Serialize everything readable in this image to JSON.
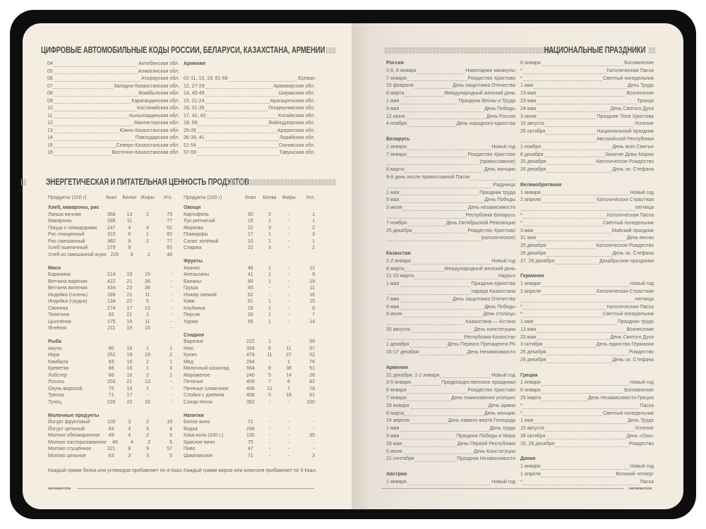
{
  "left_page": {
    "codes_title": "ЦИФРОВЫЕ АВТОМОБИЛЬНЫЕ КОДЫ РОССИИ, БЕЛАРУСИ, КАЗАХСТАНА, АРМЕНИИ",
    "codes_left": [
      {
        "c": "04",
        "r": "Актюбинская обл."
      },
      {
        "c": "05",
        "r": "Алматинская обл."
      },
      {
        "c": "06",
        "r": "Атырауская обл."
      },
      {
        "c": "07",
        "r": "Западно-Казахстанская обл."
      },
      {
        "c": "08",
        "r": "Жамбылская обл."
      },
      {
        "c": "09",
        "r": "Карагандинская обл."
      },
      {
        "c": "10",
        "r": "Костанайская обл."
      },
      {
        "c": "11",
        "r": "Кызылординская обл."
      },
      {
        "c": "12",
        "r": "Мангистауская обл."
      },
      {
        "c": "13",
        "r": "Южно-Казахстанская обл."
      },
      {
        "c": "14",
        "r": "Павлодарская обл."
      },
      {
        "c": "15",
        "r": "Северо-Казахстанская обл."
      },
      {
        "c": "16",
        "r": "Восточно-Казахстанская обл."
      }
    ],
    "codes_right_header": "Армения",
    "codes_right": [
      {
        "c": "01-11, 13, 19, 61-68",
        "r": "Ереван"
      },
      {
        "c": "12, 27-29",
        "r": "Армавирская обл."
      },
      {
        "c": "14, 45-49",
        "r": "Ширакская обл."
      },
      {
        "c": "15, 21-24",
        "r": "Арагацотнская обл."
      },
      {
        "c": "16, 31-35",
        "r": "Гехаркуникская обл."
      },
      {
        "c": "17, 42, 43",
        "r": "Котайкская обл."
      },
      {
        "c": "18, 56",
        "r": "Вайоцдзорская обл."
      },
      {
        "c": "25-26",
        "r": "Араратская обл."
      },
      {
        "c": "36-39, 41",
        "r": "Лорийская обл."
      },
      {
        "c": "51-54",
        "r": "Сюникская обл."
      },
      {
        "c": "57-59",
        "r": "Тавушская обл."
      }
    ],
    "food_title": "ЭНЕРГЕТИЧЕСКАЯ И ПИТАТЕЛЬНАЯ ЦЕННОСТЬ ПРОДУКТОВ",
    "food_headers": [
      "Продукты (100 г)",
      "Ккал",
      "Белки",
      "Жиры",
      "Угл."
    ],
    "food_left": [
      {
        "group": "Хлеб, макароны, рис",
        "rows": [
          [
            "Лапша яичная",
            "368",
            "13",
            "2",
            "79"
          ],
          [
            "Макароны",
            "336",
            "11",
            "",
            "77"
          ],
          [
            "Пицца с помидорами",
            "247",
            "4",
            "4",
            "52"
          ],
          [
            "Рис очищенный",
            "310",
            "6",
            "1",
            "82"
          ],
          [
            "Рис смешанный",
            "360",
            "8",
            "2",
            "77"
          ],
          [
            "Хлеб пшеничный",
            "279",
            "9",
            "",
            "65"
          ],
          [
            "Хлеб из смешанной муки",
            "229",
            "9",
            "2",
            "48"
          ]
        ]
      },
      {
        "group": "Мясо",
        "rows": [
          [
            "Баранина",
            "214",
            "19",
            "15",
            "-"
          ],
          [
            "Ветчина варёная",
            "422",
            "21",
            "36",
            "-"
          ],
          [
            "Ветчина вяленая",
            "434",
            "23",
            "38",
            "-"
          ],
          [
            "Индейка (голень)",
            "186",
            "21",
            "11",
            "-"
          ],
          [
            "Индейка (грудка)",
            "134",
            "22",
            "5",
            "-"
          ],
          [
            "Свинина",
            "274",
            "17",
            "23",
            "-"
          ],
          [
            "Телятина",
            "92",
            "21",
            "1",
            "-"
          ],
          [
            "Цыплёнок",
            "175",
            "19",
            "11",
            "-"
          ],
          [
            "Ягнёнок",
            "211",
            "19",
            "15",
            "-"
          ]
        ]
      },
      {
        "group": "Рыба",
        "rows": [
          [
            "Акула",
            "80",
            "16",
            "1",
            "1"
          ],
          [
            "Икра",
            "252",
            "19",
            "19",
            "2"
          ],
          [
            "Камбала",
            "83",
            "16",
            "2",
            "1"
          ],
          [
            "Креветки",
            "86",
            "16",
            "1",
            "3"
          ],
          [
            "Лобстер",
            "86",
            "16",
            "2",
            "1"
          ],
          [
            "Лосось",
            "203",
            "21",
            "13",
            "-"
          ],
          [
            "Окунь морской",
            "75",
            "15",
            "2",
            "-"
          ],
          [
            "Треска",
            "71",
            "17",
            "-",
            "-"
          ],
          [
            "Тунец",
            "226",
            "22",
            "16",
            "-"
          ]
        ]
      },
      {
        "group": "Молочные продукты",
        "rows": [
          [
            "Йогурт фруктовый",
            "100",
            "3",
            "2",
            "19"
          ],
          [
            "Йогурт цельный",
            "64",
            "4",
            "4",
            "4"
          ],
          [
            "Молоко обезжиренное",
            "49",
            "4",
            "2",
            "5"
          ],
          [
            "Молоко пастеризованное",
            "49",
            "4",
            "2",
            "5"
          ],
          [
            "Молоко сгущённое",
            "321",
            "8",
            "9",
            "57"
          ],
          [
            "Молоко цельное",
            "63",
            "3",
            "3",
            "5"
          ]
        ]
      }
    ],
    "food_right": [
      {
        "group": "Овощи",
        "rows": [
          [
            "Картофель",
            "90",
            "2",
            "-",
            "1"
          ],
          [
            "Лук репчатый",
            "15",
            "2",
            "-",
            "1"
          ],
          [
            "Морковь",
            "22",
            "3",
            "-",
            "2"
          ],
          [
            "Помидоры",
            "17",
            "1",
            "-",
            "3"
          ],
          [
            "Салат зелёный",
            "10",
            "1",
            "-",
            "1"
          ],
          [
            "Спаржа",
            "22",
            "3",
            "-",
            "2"
          ]
        ]
      },
      {
        "group": "Фрукты",
        "rows": [
          [
            "Ананас",
            "46",
            "1",
            "-",
            "12"
          ],
          [
            "Апельсины",
            "41",
            "1",
            "-",
            "9"
          ],
          [
            "Бананы",
            "80",
            "1",
            "-",
            "19"
          ],
          [
            "Груша",
            "45",
            "-",
            "-",
            "11"
          ],
          [
            "Инжир свежий",
            "62",
            "-",
            "-",
            "16"
          ],
          [
            "Киви",
            "61",
            "1",
            "-",
            "15"
          ],
          [
            "Клубника",
            "29",
            "1",
            "-",
            "6"
          ],
          [
            "Персик",
            "30",
            "1",
            "-",
            "7"
          ],
          [
            "Хурма",
            "56",
            "1",
            "-",
            "14"
          ]
        ]
      },
      {
        "group": "Сладкое",
        "rows": [
          [
            "Варенье",
            "222",
            "1",
            "-",
            "59"
          ],
          [
            "Кекс",
            "334",
            "6",
            "11",
            "57"
          ],
          [
            "Кулич",
            "479",
            "11",
            "27",
            "52"
          ],
          [
            "Мёд",
            "294",
            "-",
            "1",
            "76"
          ],
          [
            "Молочный шоколад",
            "564",
            "9",
            "38",
            "51"
          ],
          [
            "Мороженое",
            "240",
            "5",
            "14",
            "26"
          ],
          [
            "Печенье",
            "409",
            "7",
            "8",
            "82"
          ],
          [
            "Печенье сливочное",
            "406",
            "12",
            "7",
            "78"
          ],
          [
            "Слойка с джемом",
            "408",
            "5",
            "18",
            "61"
          ],
          [
            "Сахар-песок",
            "392",
            "-",
            "-",
            "100"
          ]
        ]
      },
      {
        "group": "Напитки",
        "rows": [
          [
            "Белое вино",
            "71",
            "-",
            "-",
            "-"
          ],
          [
            "Водка",
            "248",
            "-",
            "-",
            "-"
          ],
          [
            "Кока-кола (330 г.)",
            "130",
            "-",
            "-",
            "35"
          ],
          [
            "Красное вино",
            "75",
            "-",
            "-",
            "-"
          ],
          [
            "Пиво",
            "47",
            "-",
            "-",
            "-"
          ],
          [
            "Шампанское",
            "71",
            "-",
            "-",
            "3"
          ]
        ]
      }
    ],
    "note_left": "Каждый грамм белка или углеводов прибавляет по 4 Ккал.",
    "note_right": "Каждый грамм жиров или алкоголя прибавляет по 9 Ккал.",
    "footer": "INFORMATION"
  },
  "right_page": {
    "title": "НАЦИОНАЛЬНЫЕ ПРАЗДНИКИ",
    "footer": "INFORMATION",
    "col1": [
      {
        "country": "Россия",
        "items": [
          {
            "d": "1-6, 8 января",
            "t": "Новогодние каникулы"
          },
          {
            "d": "7 января",
            "t": "Рождество Христово"
          },
          {
            "d": "23 февраля",
            "t": "День защитника Отечества"
          },
          {
            "d": "8 марта",
            "t": "Международный женский день"
          },
          {
            "d": "1 мая",
            "t": "Праздник Весны и Труда"
          },
          {
            "d": "9 мая",
            "t": "День Победы"
          },
          {
            "d": "12 июня",
            "t": "День России"
          },
          {
            "d": "4 ноября",
            "t": "День народного единства"
          }
        ]
      },
      {
        "country": "Беларусь",
        "items": [
          {
            "d": "1 января",
            "t": "Новый год"
          },
          {
            "d": "7 января",
            "t": "Рождество Христово"
          },
          {
            "d": "",
            "t": "(православное)"
          },
          {
            "d": "8 марта",
            "t": "День женщин"
          },
          {
            "d": "9-й день после православной Пасхи",
            "t": ""
          },
          {
            "d": "",
            "t": "Радуница"
          },
          {
            "d": "1 мая",
            "t": "Праздник труда"
          },
          {
            "d": "9 мая",
            "t": "День Победы"
          },
          {
            "d": "3 июля",
            "t": "День независимости"
          },
          {
            "d": "",
            "t": "Республики Беларусь"
          },
          {
            "d": "7 ноября",
            "t": "День Октябрьской Революции"
          },
          {
            "d": "25 декабря",
            "t": "Рождество Христово"
          },
          {
            "d": "",
            "t": "(католическое)"
          }
        ]
      },
      {
        "country": "Казахстан",
        "items": [
          {
            "d": "1-2 января",
            "t": "Новый год"
          },
          {
            "d": "8 марта",
            "t": "Международный женский день"
          },
          {
            "d": "21-23 марта",
            "t": "Наурыз"
          },
          {
            "d": "1 мая",
            "t": "Праздник единства"
          },
          {
            "d": "",
            "t": "народа Казахстана"
          },
          {
            "d": "7 мая",
            "t": "День защитника Отечества"
          },
          {
            "d": "9 мая",
            "t": "День Победы"
          },
          {
            "d": "6 июля",
            "t": "День столицы"
          },
          {
            "d": "",
            "t": "Казахстана — Астана"
          },
          {
            "d": "30 августа",
            "t": "День конституции"
          },
          {
            "d": "",
            "t": "Республики Казахстан"
          },
          {
            "d": "1 декабря",
            "t": "День Первого Президента РК"
          },
          {
            "d": "16-17 декабря",
            "t": "День Независимости"
          }
        ]
      },
      {
        "country": "Армения",
        "items": [
          {
            "d": "31 декабря, 1-2 января",
            "t": "Новый год"
          },
          {
            "d": "3-5 января",
            "t": "Предрождественские праздники"
          },
          {
            "d": "6 января",
            "t": "Рождество Христово"
          },
          {
            "d": "7 января",
            "t": "День поминовения усопших"
          },
          {
            "d": "28 января",
            "t": "День армии"
          },
          {
            "d": "8 марта",
            "t": "День женщин"
          },
          {
            "d": "24 апреля",
            "t": "День памяти жертв Геноцида"
          },
          {
            "d": "1 мая",
            "t": "День труда"
          },
          {
            "d": "9 мая",
            "t": "Праздник Победы и Мира"
          },
          {
            "d": "28 мая",
            "t": "День Первой Республики"
          },
          {
            "d": "5 июля",
            "t": "День Конституции"
          },
          {
            "d": "21 сентября",
            "t": "Праздник Независимости"
          }
        ]
      },
      {
        "country": "Австрия",
        "items": [
          {
            "d": "1 января",
            "t": "Новый год"
          }
        ]
      }
    ],
    "col2": [
      {
        "country": "",
        "items": [
          {
            "d": "6 января",
            "t": "Богоявление"
          },
          {
            "d": "*",
            "t": "Католическая Пасха"
          },
          {
            "d": "*",
            "t": "Светлый понедельник"
          },
          {
            "d": "1 мая",
            "t": "День Труда"
          },
          {
            "d": "13 мая",
            "t": "Вознесение"
          },
          {
            "d": "23 мая",
            "t": "Троица"
          },
          {
            "d": "24 мая",
            "t": "День Святого Духа"
          },
          {
            "d": "3 июня",
            "t": "Праздник Тела Христова"
          },
          {
            "d": "15 августа",
            "t": "Успение"
          },
          {
            "d": "26 октября",
            "t": "Национальный праздник"
          },
          {
            "d": "",
            "t": "Австрийской Республики"
          },
          {
            "d": "1 ноября",
            "t": "День всех Святых"
          },
          {
            "d": "8 декабря",
            "t": "Зачатие Девы Марии"
          },
          {
            "d": "25 декабря",
            "t": "Католическое Рождество"
          },
          {
            "d": "26 декабря",
            "t": "День св. Стефана"
          }
        ]
      },
      {
        "country": "Великобритания",
        "items": [
          {
            "d": "1 января",
            "t": "Новый год"
          },
          {
            "d": "2 апреля",
            "t": "Католическая Страстная"
          },
          {
            "d": "",
            "t": "пятница"
          },
          {
            "d": "*",
            "t": "Католическая Пасха"
          },
          {
            "d": "*",
            "t": "Светлый понедельник"
          },
          {
            "d": "3 мая",
            "t": "Майский праздник"
          },
          {
            "d": "31 мая",
            "t": "День весны"
          },
          {
            "d": "25 декабря",
            "t": "Католическое Рождество"
          },
          {
            "d": "26 декабря",
            "t": "День св. Стефана"
          },
          {
            "d": "27, 28 декабря",
            "t": "Декабрьские праздники"
          }
        ]
      },
      {
        "country": "Германия",
        "items": [
          {
            "d": "1 января",
            "t": "Новый год"
          },
          {
            "d": "2 апреля",
            "t": "Католическая Страстная"
          },
          {
            "d": "",
            "t": "пятница"
          },
          {
            "d": "*",
            "t": "Католическая Пасха"
          },
          {
            "d": "*",
            "t": "Светлый понедельник"
          },
          {
            "d": "1 мая",
            "t": "Праздник труда"
          },
          {
            "d": "13 мая",
            "t": "Вознесение"
          },
          {
            "d": "23 мая",
            "t": "День Святого Духа"
          },
          {
            "d": "3 октября",
            "t": "День единства Германии"
          },
          {
            "d": "25 декабря",
            "t": "Рождество"
          },
          {
            "d": "26 декабря",
            "t": "День св. Стефана"
          }
        ]
      },
      {
        "country": "Греция",
        "items": [
          {
            "d": "1 января",
            "t": "Новый год"
          },
          {
            "d": "6 января",
            "t": "Богоявление"
          },
          {
            "d": "25 марта",
            "t": "День Независимости Греции"
          },
          {
            "d": "*",
            "t": "Пасха"
          },
          {
            "d": "*",
            "t": "Светлый понедельник"
          },
          {
            "d": "1 мая",
            "t": "День Труда"
          },
          {
            "d": "15 августа",
            "t": "Успение"
          },
          {
            "d": "28 октября",
            "t": "День «Охи»"
          },
          {
            "d": "25, 26 декабря",
            "t": "Рождество"
          }
        ]
      },
      {
        "country": "Дания",
        "items": [
          {
            "d": "1 января",
            "t": "Новый год"
          },
          {
            "d": "1 апреля",
            "t": "Великий четверг"
          },
          {
            "d": "*",
            "t": "Пасха"
          }
        ]
      }
    ]
  }
}
